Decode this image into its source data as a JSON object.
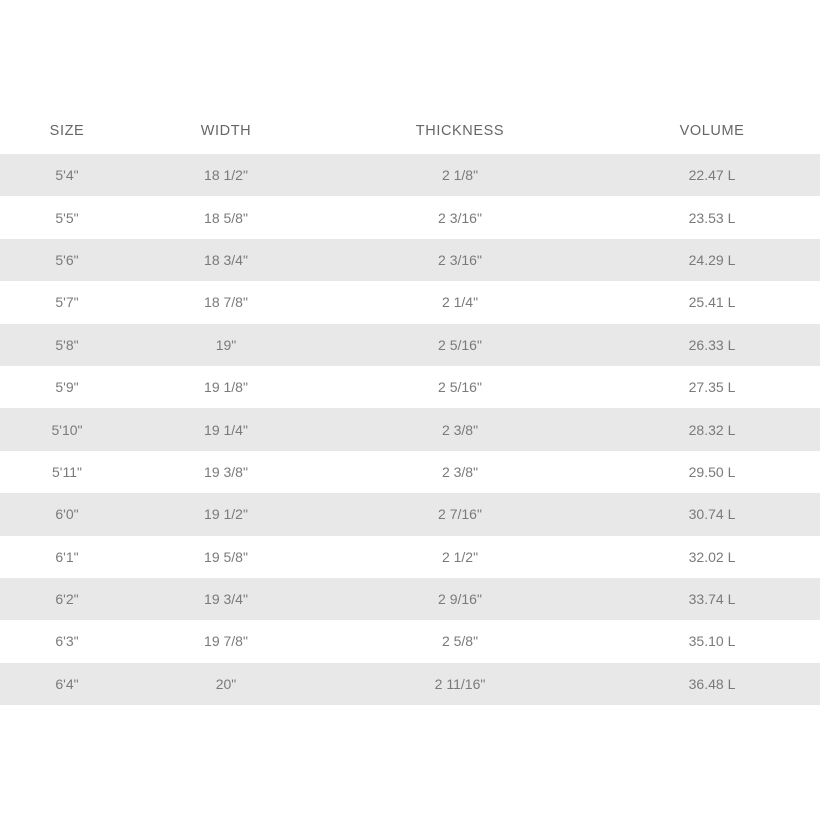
{
  "table": {
    "headers": [
      "SIZE",
      "WIDTH",
      "THICKNESS",
      "VOLUME"
    ],
    "stripe_color": "#e8e8e8",
    "rows": [
      [
        "5'4\"",
        "18 1/2\"",
        "2 1/8\"",
        "22.47 L"
      ],
      [
        "5'5\"",
        "18 5/8\"",
        "2 3/16\"",
        "23.53 L"
      ],
      [
        "5'6\"",
        "18 3/4\"",
        "2 3/16\"",
        "24.29 L"
      ],
      [
        "5'7\"",
        "18 7/8\"",
        "2 1/4\"",
        "25.41 L"
      ],
      [
        "5'8\"",
        "19\"",
        "2 5/16\"",
        "26.33 L"
      ],
      [
        "5'9\"",
        "19 1/8\"",
        "2 5/16\"",
        "27.35 L"
      ],
      [
        "5'10\"",
        "19 1/4\"",
        "2 3/8\"",
        "28.32 L"
      ],
      [
        "5'11\"",
        "19 3/8\"",
        "2 3/8\"",
        "29.50 L"
      ],
      [
        "6'0\"",
        "19 1/2\"",
        "2 7/16\"",
        "30.74 L"
      ],
      [
        "6'1\"",
        "19 5/8\"",
        "2 1/2\"",
        "32.02 L"
      ],
      [
        "6'2\"",
        "19 3/4\"",
        "2 9/16\"",
        "33.74 L"
      ],
      [
        "6'3\"",
        "19 7/8\"",
        "2 5/8\"",
        "35.10 L"
      ],
      [
        "6'4\"",
        "20\"",
        "2 11/16\"",
        "36.48 L"
      ]
    ]
  }
}
